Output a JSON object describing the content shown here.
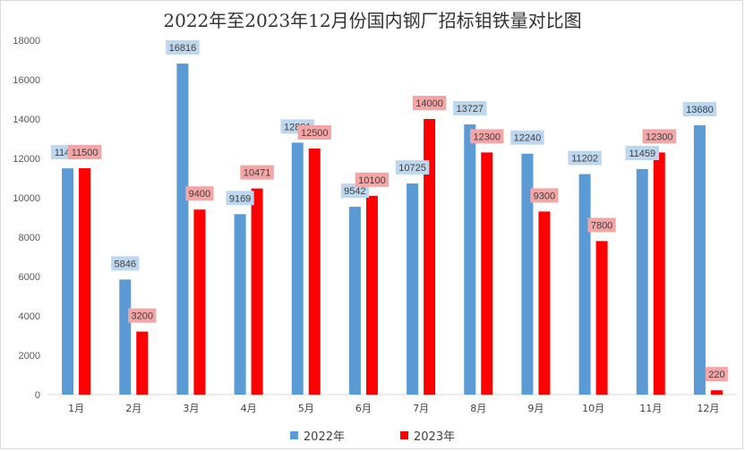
{
  "chart_data": {
    "type": "bar",
    "title": "2022年至2023年12月份国内钢厂招标钼铁量对比图",
    "categories": [
      "1月",
      "2月",
      "3月",
      "4月",
      "5月",
      "6月",
      "7月",
      "8月",
      "9月",
      "10月",
      "11月",
      "12月"
    ],
    "series": [
      {
        "name": "2022年",
        "color": "#5b9bd5",
        "label_bg": "#bdd7ee",
        "values": [
          11495,
          5846,
          16816,
          9169,
          12801,
          9542,
          10725,
          13727,
          12240,
          11202,
          11459,
          13680
        ]
      },
      {
        "name": "2023年",
        "color": "#ff0000",
        "label_bg": "#f4a6a6",
        "values": [
          11500,
          3200,
          9400,
          10471,
          12500,
          10100,
          14000,
          12300,
          9300,
          7800,
          12300,
          220
        ]
      }
    ],
    "ylim": [
      0,
      18000
    ],
    "yticks": [
      0,
      2000,
      4000,
      6000,
      8000,
      10000,
      12000,
      14000,
      16000,
      18000
    ],
    "grid": false,
    "legend_position": "bottom"
  }
}
